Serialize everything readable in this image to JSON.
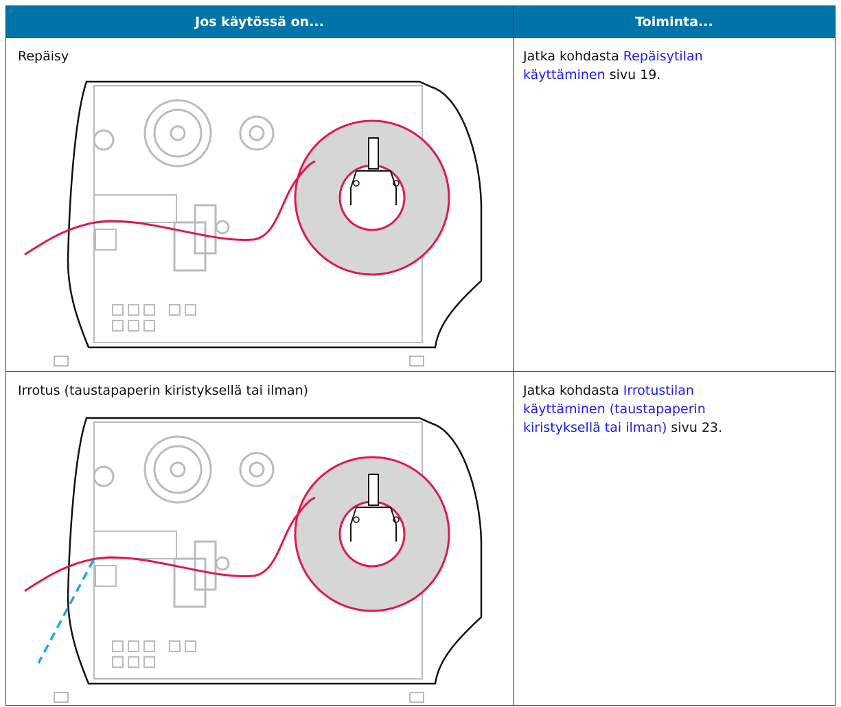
{
  "header": [
    "Jos käytössä on...",
    "Toiminta..."
  ],
  "rows": [
    {
      "mode": "Repäisy",
      "action": {
        "prefix": "Jatka kohdasta ",
        "link": "Repäisytilan käyttäminen",
        "suffix": " sivu 19."
      }
    },
    {
      "mode": "Irrotus (taustapaperin kiristyksellä tai ilman)",
      "action": {
        "prefix": "Jatka kohdasta ",
        "link": "Irrotustilan käyttäminen (taustapaperin kiristyksellä tai ilman)",
        "suffix": " sivu 23."
      }
    }
  ]
}
